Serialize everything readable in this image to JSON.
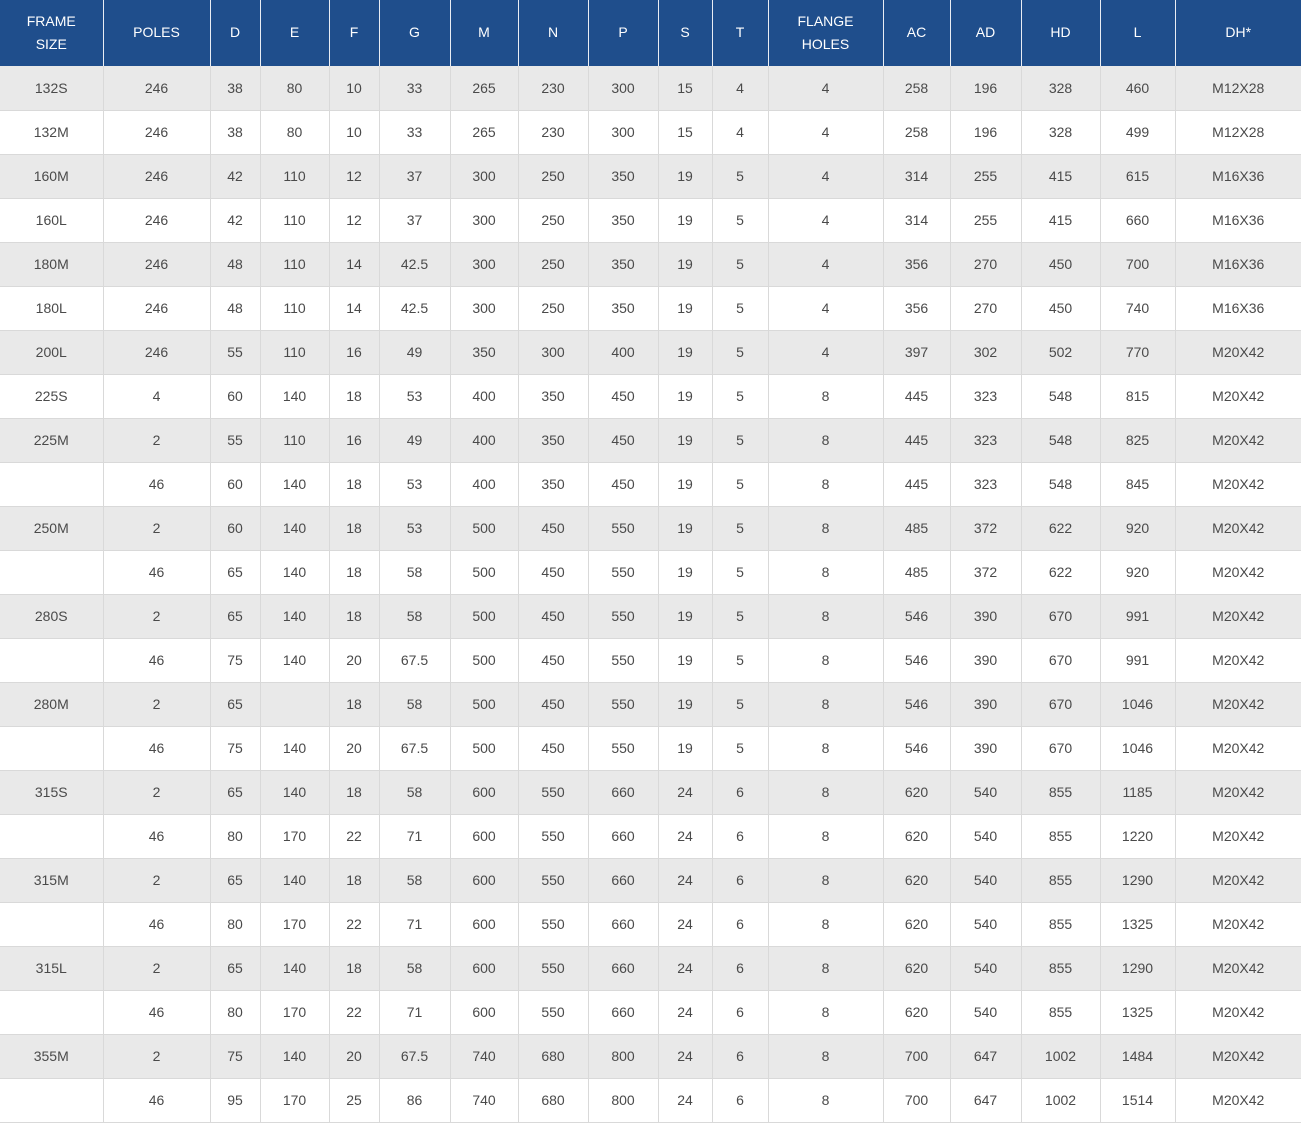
{
  "colors": {
    "header_bg": "#1f4e8c",
    "header_text": "#ffffff",
    "row_alt_bg": "#e9e9e9",
    "row_bg": "#ffffff",
    "cell_text": "#4a4a4a",
    "border": "#d9d9d9"
  },
  "table": {
    "columns": [
      "FRAME SIZE",
      "POLES",
      "D",
      "E",
      "F",
      "G",
      "M",
      "N",
      "P",
      "S",
      "T",
      "FLANGE HOLES",
      "AC",
      "AD",
      "HD",
      "L",
      "DH*"
    ],
    "rows": [
      [
        "132S",
        "246",
        "38",
        "80",
        "10",
        "33",
        "265",
        "230",
        "300",
        "15",
        "4",
        "4",
        "258",
        "196",
        "328",
        "460",
        "M12X28"
      ],
      [
        "132M",
        "246",
        "38",
        "80",
        "10",
        "33",
        "265",
        "230",
        "300",
        "15",
        "4",
        "4",
        "258",
        "196",
        "328",
        "499",
        "M12X28"
      ],
      [
        "160M",
        "246",
        "42",
        "110",
        "12",
        "37",
        "300",
        "250",
        "350",
        "19",
        "5",
        "4",
        "314",
        "255",
        "415",
        "615",
        "M16X36"
      ],
      [
        "160L",
        "246",
        "42",
        "110",
        "12",
        "37",
        "300",
        "250",
        "350",
        "19",
        "5",
        "4",
        "314",
        "255",
        "415",
        "660",
        "M16X36"
      ],
      [
        "180M",
        "246",
        "48",
        "110",
        "14",
        "42.5",
        "300",
        "250",
        "350",
        "19",
        "5",
        "4",
        "356",
        "270",
        "450",
        "700",
        "M16X36"
      ],
      [
        "180L",
        "246",
        "48",
        "110",
        "14",
        "42.5",
        "300",
        "250",
        "350",
        "19",
        "5",
        "4",
        "356",
        "270",
        "450",
        "740",
        "M16X36"
      ],
      [
        "200L",
        "246",
        "55",
        "110",
        "16",
        "49",
        "350",
        "300",
        "400",
        "19",
        "5",
        "4",
        "397",
        "302",
        "502",
        "770",
        "M20X42"
      ],
      [
        "225S",
        "4",
        "60",
        "140",
        "18",
        "53",
        "400",
        "350",
        "450",
        "19",
        "5",
        "8",
        "445",
        "323",
        "548",
        "815",
        "M20X42"
      ],
      [
        "225M",
        "2",
        "55",
        "110",
        "16",
        "49",
        "400",
        "350",
        "450",
        "19",
        "5",
        "8",
        "445",
        "323",
        "548",
        "825",
        "M20X42"
      ],
      [
        "",
        "46",
        "60",
        "140",
        "18",
        "53",
        "400",
        "350",
        "450",
        "19",
        "5",
        "8",
        "445",
        "323",
        "548",
        "845",
        "M20X42"
      ],
      [
        "250M",
        "2",
        "60",
        "140",
        "18",
        "53",
        "500",
        "450",
        "550",
        "19",
        "5",
        "8",
        "485",
        "372",
        "622",
        "920",
        "M20X42"
      ],
      [
        "",
        "46",
        "65",
        "140",
        "18",
        "58",
        "500",
        "450",
        "550",
        "19",
        "5",
        "8",
        "485",
        "372",
        "622",
        "920",
        "M20X42"
      ],
      [
        "280S",
        "2",
        "65",
        "140",
        "18",
        "58",
        "500",
        "450",
        "550",
        "19",
        "5",
        "8",
        "546",
        "390",
        "670",
        "991",
        "M20X42"
      ],
      [
        "",
        "46",
        "75",
        "140",
        "20",
        "67.5",
        "500",
        "450",
        "550",
        "19",
        "5",
        "8",
        "546",
        "390",
        "670",
        "991",
        "M20X42"
      ],
      [
        "280M",
        "2",
        "65",
        "",
        "18",
        "58",
        "500",
        "450",
        "550",
        "19",
        "5",
        "8",
        "546",
        "390",
        "670",
        "1046",
        "M20X42"
      ],
      [
        "",
        "46",
        "75",
        "140",
        "20",
        "67.5",
        "500",
        "450",
        "550",
        "19",
        "5",
        "8",
        "546",
        "390",
        "670",
        "1046",
        "M20X42"
      ],
      [
        "315S",
        "2",
        "65",
        "140",
        "18",
        "58",
        "600",
        "550",
        "660",
        "24",
        "6",
        "8",
        "620",
        "540",
        "855",
        "1185",
        "M20X42"
      ],
      [
        "",
        "46",
        "80",
        "170",
        "22",
        "71",
        "600",
        "550",
        "660",
        "24",
        "6",
        "8",
        "620",
        "540",
        "855",
        "1220",
        "M20X42"
      ],
      [
        "315M",
        "2",
        "65",
        "140",
        "18",
        "58",
        "600",
        "550",
        "660",
        "24",
        "6",
        "8",
        "620",
        "540",
        "855",
        "1290",
        "M20X42"
      ],
      [
        "",
        "46",
        "80",
        "170",
        "22",
        "71",
        "600",
        "550",
        "660",
        "24",
        "6",
        "8",
        "620",
        "540",
        "855",
        "1325",
        "M20X42"
      ],
      [
        "315L",
        "2",
        "65",
        "140",
        "18",
        "58",
        "600",
        "550",
        "660",
        "24",
        "6",
        "8",
        "620",
        "540",
        "855",
        "1290",
        "M20X42"
      ],
      [
        "",
        "46",
        "80",
        "170",
        "22",
        "71",
        "600",
        "550",
        "660",
        "24",
        "6",
        "8",
        "620",
        "540",
        "855",
        "1325",
        "M20X42"
      ],
      [
        "355M",
        "2",
        "75",
        "140",
        "20",
        "67.5",
        "740",
        "680",
        "800",
        "24",
        "6",
        "8",
        "700",
        "647",
        "1002",
        "1484",
        "M20X42"
      ],
      [
        "",
        "46",
        "95",
        "170",
        "25",
        "86",
        "740",
        "680",
        "800",
        "24",
        "6",
        "8",
        "700",
        "647",
        "1002",
        "1514",
        "M20X42"
      ]
    ]
  }
}
